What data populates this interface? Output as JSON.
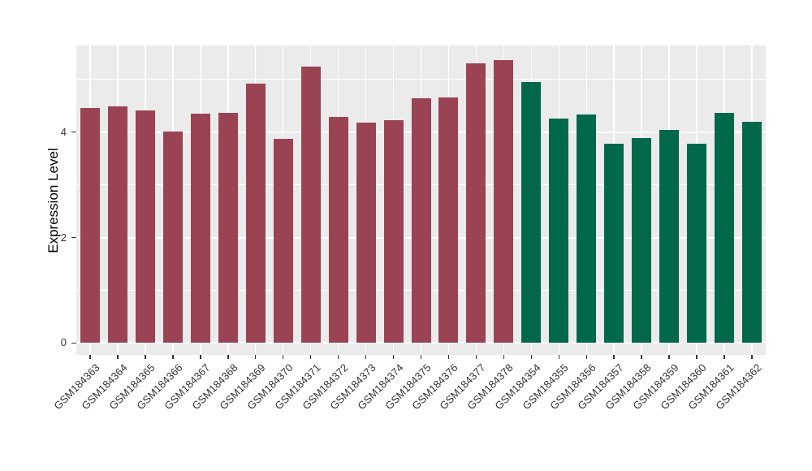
{
  "figure": {
    "background": "#FFFFFF",
    "panel_background": "#EBEBEB",
    "gridline_color": "#FFFFFF",
    "axis_text_color": "#333333",
    "axis_title_color": "#000000"
  },
  "chart_data": {
    "type": "bar",
    "title": "",
    "xlabel": "",
    "ylabel": "Expression Level",
    "ylim": [
      -0.23,
      5.63
    ],
    "yticks": [
      0,
      2,
      4
    ],
    "yticks_minor": [
      1,
      3,
      5
    ],
    "grid": "major+minor horizontal, major vertical per category",
    "legend": "none",
    "x_label_rotation_deg": 45,
    "categories": [
      "GSM184363",
      "GSM184364",
      "GSM184365",
      "GSM184366",
      "GSM184367",
      "GSM184368",
      "GSM184369",
      "GSM184370",
      "GSM184371",
      "GSM184372",
      "GSM184373",
      "GSM184374",
      "GSM184375",
      "GSM184376",
      "GSM184377",
      "GSM184378",
      "GSM184354",
      "GSM184355",
      "GSM184356",
      "GSM184357",
      "GSM184358",
      "GSM184359",
      "GSM184360",
      "GSM184361",
      "GSM184362"
    ],
    "values": [
      4.46,
      4.49,
      4.41,
      4.01,
      4.35,
      4.36,
      4.92,
      3.87,
      5.24,
      4.29,
      4.18,
      4.22,
      4.64,
      4.66,
      5.3,
      5.37,
      4.95,
      4.26,
      4.34,
      3.78,
      3.89,
      4.04,
      3.78,
      4.37,
      4.2
    ],
    "groups": [
      "red",
      "red",
      "red",
      "red",
      "red",
      "red",
      "red",
      "red",
      "red",
      "red",
      "red",
      "red",
      "red",
      "red",
      "red",
      "red",
      "green",
      "green",
      "green",
      "green",
      "green",
      "green",
      "green",
      "green",
      "green"
    ],
    "palette": {
      "red": "#9A4353",
      "green": "#02684A"
    }
  }
}
